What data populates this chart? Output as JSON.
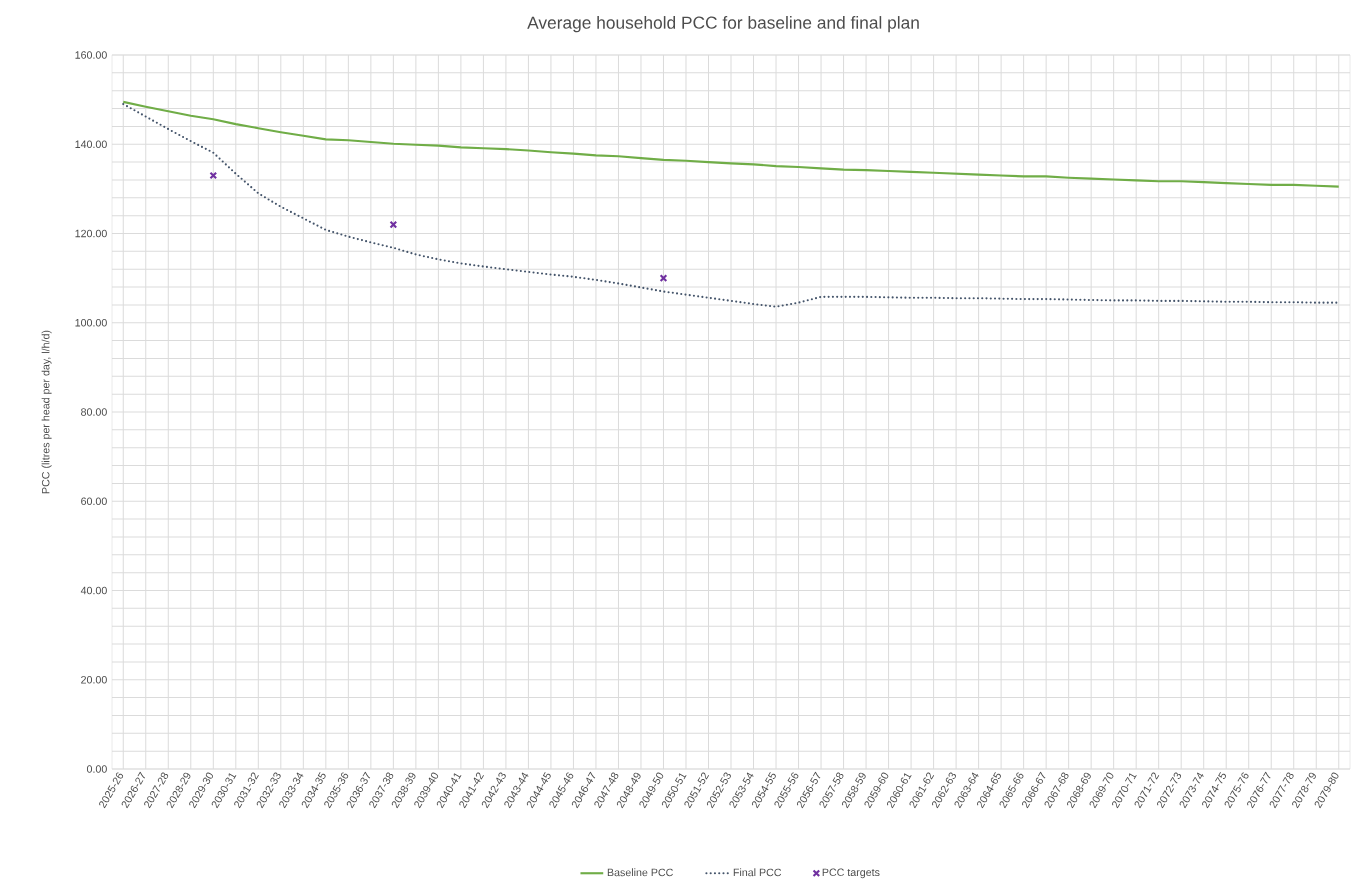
{
  "chart_data": {
    "type": "line",
    "title": "Average household PCC for baseline and final plan",
    "ylabel": "PCC (litres per head per day, l/h/d)",
    "categories": [
      "2025-26",
      "2026-27",
      "2027-28",
      "2028-29",
      "2029-30",
      "2030-31",
      "2031-32",
      "2032-33",
      "2033-34",
      "2034-35",
      "2035-36",
      "2036-37",
      "2037-38",
      "2038-39",
      "2039-40",
      "2040-41",
      "2041-42",
      "2042-43",
      "2043-44",
      "2044-45",
      "2045-46",
      "2046-47",
      "2047-48",
      "2048-49",
      "2049-50",
      "2050-51",
      "2051-52",
      "2052-53",
      "2053-54",
      "2054-55",
      "2055-56",
      "2056-57",
      "2057-58",
      "2058-59",
      "2059-60",
      "2060-61",
      "2061-62",
      "2062-63",
      "2063-64",
      "2064-65",
      "2065-66",
      "2066-67",
      "2067-68",
      "2068-69",
      "2069-70",
      "2070-71",
      "2071-72",
      "2072-73",
      "2073-74",
      "2074-75",
      "2075-76",
      "2076-77",
      "2077-78",
      "2078-79",
      "2079-80"
    ],
    "series": [
      {
        "name": "Baseline PCC",
        "color": "#70ad47",
        "line_style": "solid",
        "marker": "none",
        "values": [
          149.5,
          148.4,
          147.4,
          146.4,
          145.6,
          144.5,
          143.6,
          142.7,
          141.9,
          141.1,
          140.9,
          140.5,
          140.1,
          139.9,
          139.7,
          139.3,
          139.1,
          138.9,
          138.6,
          138.2,
          137.9,
          137.5,
          137.3,
          136.9,
          136.5,
          136.3,
          136.0,
          135.7,
          135.5,
          135.1,
          134.9,
          134.6,
          134.3,
          134.2,
          134.0,
          133.8,
          133.6,
          133.4,
          133.2,
          133.0,
          132.8,
          132.8,
          132.5,
          132.3,
          132.1,
          131.9,
          131.7,
          131.7,
          131.5,
          131.3,
          131.1,
          130.9,
          130.9,
          130.7,
          130.5
        ]
      },
      {
        "name": "Final PCC",
        "color": "#44546a",
        "line_style": "dotted",
        "marker": "none",
        "values": [
          149.0,
          146.2,
          143.4,
          140.7,
          138.1,
          133.4,
          129.0,
          126.0,
          123.4,
          120.8,
          119.3,
          118.0,
          116.8,
          115.3,
          114.2,
          113.3,
          112.6,
          112.0,
          111.4,
          110.8,
          110.3,
          109.6,
          108.8,
          107.9,
          107.0,
          106.3,
          105.6,
          104.9,
          104.2,
          103.6,
          104.5,
          105.8,
          105.8,
          105.8,
          105.7,
          105.6,
          105.6,
          105.5,
          105.5,
          105.4,
          105.3,
          105.3,
          105.2,
          105.1,
          105.0,
          105.0,
          104.9,
          104.9,
          104.8,
          104.7,
          104.7,
          104.6,
          104.6,
          104.5,
          104.5
        ]
      },
      {
        "name": "PCC targets",
        "type": "scatter",
        "color": "#7030a0",
        "marker": "cross",
        "values": [
          null,
          null,
          null,
          null,
          133,
          null,
          null,
          null,
          null,
          null,
          null,
          null,
          122,
          null,
          null,
          null,
          null,
          null,
          null,
          null,
          null,
          null,
          null,
          null,
          110,
          null,
          null,
          null,
          null,
          null,
          null,
          null,
          null,
          null,
          null,
          null,
          null,
          null,
          null,
          null,
          null,
          null,
          null,
          null,
          null,
          null,
          null,
          null,
          null,
          null,
          null,
          null,
          null,
          null,
          null
        ]
      }
    ],
    "ylim": [
      0,
      160
    ],
    "yticks": [
      {
        "value": 0,
        "label": "0.00"
      },
      {
        "value": 20,
        "label": "20.00"
      },
      {
        "value": 40,
        "label": "40.00"
      },
      {
        "value": 60,
        "label": "60.00"
      },
      {
        "value": 80,
        "label": "80.00"
      },
      {
        "value": 100,
        "label": "100.00"
      },
      {
        "value": 120,
        "label": "120.00"
      },
      {
        "value": 140,
        "label": "140.00"
      },
      {
        "value": 160,
        "label": "160.00"
      }
    ],
    "grid": true,
    "legend": "bottom"
  }
}
